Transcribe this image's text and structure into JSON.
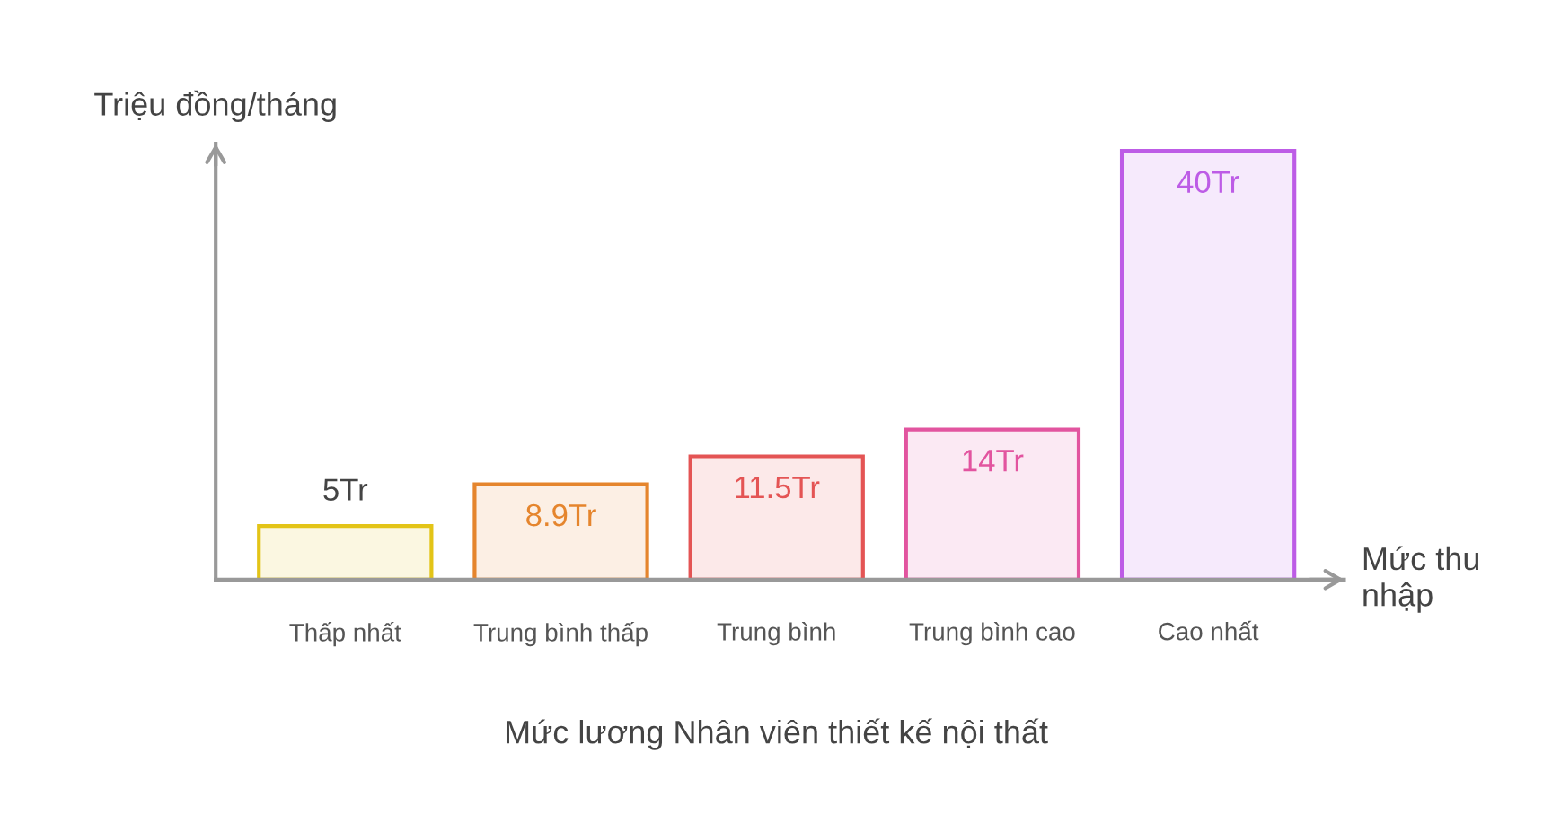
{
  "chart_data": {
    "type": "bar",
    "title": "Mức lương Nhân viên thiết kế nội thất",
    "ylabel": "Triệu đồng/tháng",
    "xlabel": "Mức thu nhập",
    "categories": [
      "Thấp nhất",
      "Trung bình thấp",
      "Trung bình",
      "Trung bình cao",
      "Cao nhất"
    ],
    "values": [
      5,
      8.9,
      11.5,
      14,
      40
    ],
    "colors": [
      "#e3c417",
      "#e5852d",
      "#e45454",
      "#e2549f",
      "#bd5ce6"
    ],
    "value_labels": [
      "5Tr",
      "8.9Tr",
      "11.5Tr",
      "14Tr",
      "40Tr"
    ],
    "tick_labels": "x"
  }
}
